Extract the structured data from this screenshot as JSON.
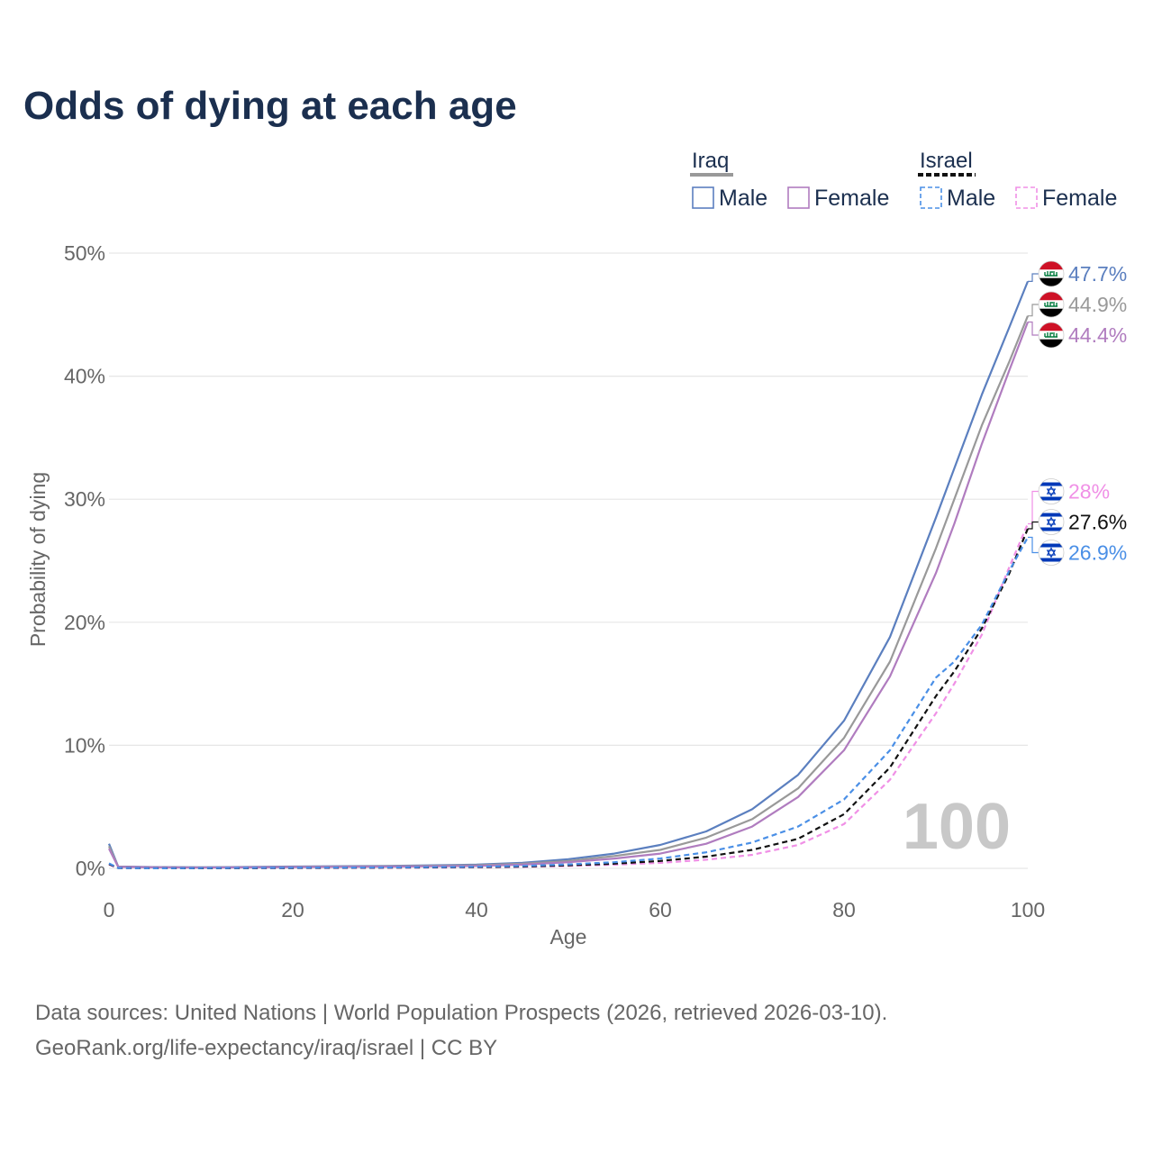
{
  "title": "Odds of dying at each age",
  "legend": {
    "groups": [
      {
        "name": "Iraq",
        "line_color": "#999999",
        "dashed": false,
        "items": [
          {
            "label": "Male",
            "color": "#5b7fbf",
            "dashed": false
          },
          {
            "label": "Female",
            "color": "#b07cbf",
            "dashed": false
          }
        ]
      },
      {
        "name": "Israel",
        "line_color": "#111111",
        "dashed": true,
        "items": [
          {
            "label": "Male",
            "color": "#4a8fe6",
            "dashed": true
          },
          {
            "label": "Female",
            "color": "#f090e6",
            "dashed": true
          }
        ]
      }
    ]
  },
  "year_label": "100",
  "source": {
    "line1": "Data sources: United Nations | World Population Prospects (2026, retrieved 2026-03-10).",
    "line2": "GeoRank.org/life-expectancy/iraq/israel | CC BY"
  },
  "chart_data": {
    "type": "line",
    "title": "Odds of dying at each age",
    "xlabel": "Age",
    "ylabel": "Probability of dying",
    "xlim": [
      0,
      100
    ],
    "ylim": [
      0,
      50
    ],
    "xticks": [
      0,
      20,
      40,
      60,
      80,
      100
    ],
    "yticks": [
      0,
      10,
      20,
      30,
      40,
      50
    ],
    "ytick_labels": [
      "0%",
      "10%",
      "20%",
      "30%",
      "40%",
      "50%"
    ],
    "grid": true,
    "x": [
      0,
      1,
      5,
      10,
      20,
      30,
      40,
      45,
      50,
      55,
      60,
      65,
      70,
      75,
      80,
      85,
      90,
      92,
      95,
      98,
      100
    ],
    "series": [
      {
        "name": "Iraq Male",
        "country": "iraq",
        "color": "#5b7fbf",
        "dashed": false,
        "values": [
          2.0,
          0.15,
          0.1,
          0.08,
          0.15,
          0.2,
          0.3,
          0.45,
          0.75,
          1.2,
          1.9,
          3.0,
          4.8,
          7.6,
          12.0,
          18.8,
          28.5,
          32.5,
          38.5,
          44.0,
          47.7
        ]
      },
      {
        "name": "Iraq Total",
        "country": "iraq",
        "color": "#999999",
        "dashed": false,
        "values": [
          1.8,
          0.13,
          0.09,
          0.07,
          0.12,
          0.17,
          0.25,
          0.38,
          0.6,
          1.0,
          1.5,
          2.5,
          4.0,
          6.5,
          10.6,
          16.8,
          26.0,
          30.0,
          36.0,
          41.2,
          44.9
        ]
      },
      {
        "name": "Iraq Female",
        "country": "iraq",
        "color": "#b07cbf",
        "dashed": false,
        "values": [
          1.6,
          0.12,
          0.08,
          0.06,
          0.1,
          0.14,
          0.2,
          0.3,
          0.5,
          0.8,
          1.2,
          2.0,
          3.4,
          5.8,
          9.6,
          15.6,
          24.0,
          28.0,
          34.5,
          40.5,
          44.4
        ]
      },
      {
        "name": "Israel Female",
        "country": "israel",
        "color": "#f090e6",
        "dashed": true,
        "values": [
          0.3,
          0.02,
          0.01,
          0.01,
          0.02,
          0.04,
          0.08,
          0.12,
          0.2,
          0.3,
          0.45,
          0.7,
          1.1,
          1.9,
          3.6,
          7.2,
          12.6,
          15.0,
          19.0,
          24.5,
          28.0
        ]
      },
      {
        "name": "Israel Total",
        "country": "israel",
        "color": "#111111",
        "dashed": true,
        "values": [
          0.35,
          0.03,
          0.01,
          0.01,
          0.03,
          0.06,
          0.1,
          0.15,
          0.25,
          0.38,
          0.6,
          0.95,
          1.5,
          2.4,
          4.4,
          8.2,
          14.0,
          16.0,
          19.5,
          24.0,
          27.6
        ]
      },
      {
        "name": "Israel Male",
        "country": "israel",
        "color": "#4a8fe6",
        "dashed": true,
        "values": [
          0.4,
          0.03,
          0.01,
          0.02,
          0.05,
          0.07,
          0.13,
          0.2,
          0.32,
          0.5,
          0.8,
          1.3,
          2.1,
          3.4,
          5.6,
          9.6,
          15.5,
          16.8,
          19.8,
          24.2,
          26.9
        ]
      }
    ],
    "end_labels": [
      {
        "series": "Iraq Male",
        "text": "47.7%",
        "color": "#5b7fbf",
        "country": "iraq"
      },
      {
        "series": "Iraq Total",
        "text": "44.9%",
        "color": "#999999",
        "country": "iraq"
      },
      {
        "series": "Iraq Female",
        "text": "44.4%",
        "color": "#b07cbf",
        "country": "iraq"
      },
      {
        "series": "Israel Female",
        "text": "28%",
        "color": "#f090e6",
        "country": "israel"
      },
      {
        "series": "Israel Total",
        "text": "27.6%",
        "color": "#111111",
        "country": "israel"
      },
      {
        "series": "Israel Male",
        "text": "26.9%",
        "color": "#4a8fe6",
        "country": "israel"
      }
    ]
  }
}
